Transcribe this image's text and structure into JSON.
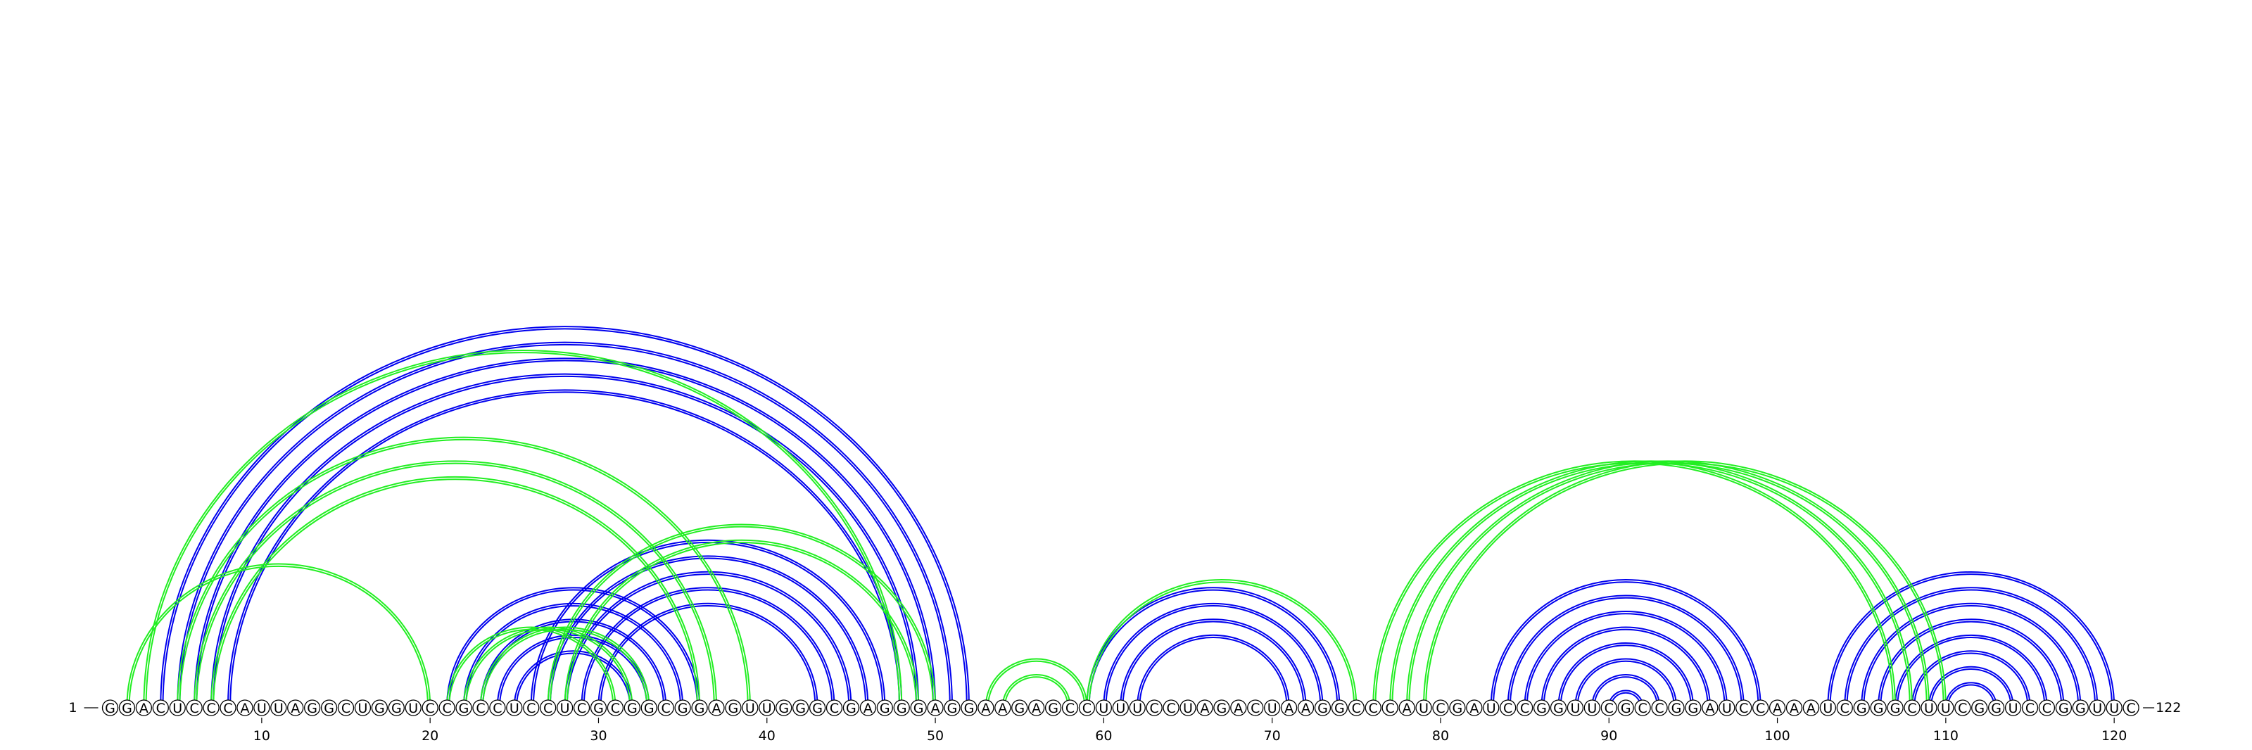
{
  "sequence": "GGACUCCCAUUAGGCUGGUCCGCCUCCUCGCGGCGGAGUUGGGCGAGGGAGGAAGAGCCUUUCCUAGACUAAGGCCCAUCGAUCCGGUUCGCCGGAUCCAAAUCGGGCUUCGGUCCGGUUC",
  "start_label": "1",
  "end_label": "122",
  "tick_labels": [
    "10",
    "20",
    "30",
    "40",
    "50",
    "60",
    "70",
    "80",
    "90",
    "100",
    "110",
    "120"
  ],
  "colors": {
    "blue": "#0000ee",
    "green": "#22ee22"
  },
  "arc_groups": [
    {
      "color": "blue",
      "pairs": [
        [
          4,
          52
        ],
        [
          5,
          51
        ],
        [
          6,
          50
        ],
        [
          7,
          49
        ],
        [
          8,
          48
        ],
        [
          21,
          36
        ],
        [
          22,
          35
        ],
        [
          23,
          34
        ],
        [
          24,
          33
        ],
        [
          25,
          32
        ],
        [
          26,
          47
        ],
        [
          27,
          46
        ],
        [
          28,
          45
        ],
        [
          29,
          44
        ],
        [
          30,
          43
        ],
        [
          59,
          74
        ],
        [
          60,
          73
        ],
        [
          61,
          72
        ],
        [
          62,
          71
        ],
        [
          83,
          99
        ],
        [
          84,
          98
        ],
        [
          85,
          97
        ],
        [
          86,
          96
        ],
        [
          87,
          95
        ],
        [
          88,
          94
        ],
        [
          89,
          93
        ],
        [
          90,
          92
        ],
        [
          103,
          120
        ],
        [
          104,
          119
        ],
        [
          105,
          118
        ],
        [
          106,
          117
        ],
        [
          107,
          116
        ],
        [
          108,
          115
        ],
        [
          109,
          114
        ],
        [
          110,
          113
        ]
      ]
    },
    {
      "color": "green",
      "pairs": [
        [
          2,
          20
        ],
        [
          3,
          48
        ],
        [
          5,
          39
        ],
        [
          6,
          37
        ],
        [
          7,
          36
        ],
        [
          21,
          31
        ],
        [
          22,
          32
        ],
        [
          23,
          33
        ],
        [
          27,
          50
        ],
        [
          28,
          49
        ],
        [
          53,
          59
        ],
        [
          54,
          58
        ],
        [
          59,
          75
        ],
        [
          76,
          107
        ],
        [
          77,
          108
        ],
        [
          78,
          109
        ],
        [
          79,
          110
        ]
      ]
    }
  ]
}
